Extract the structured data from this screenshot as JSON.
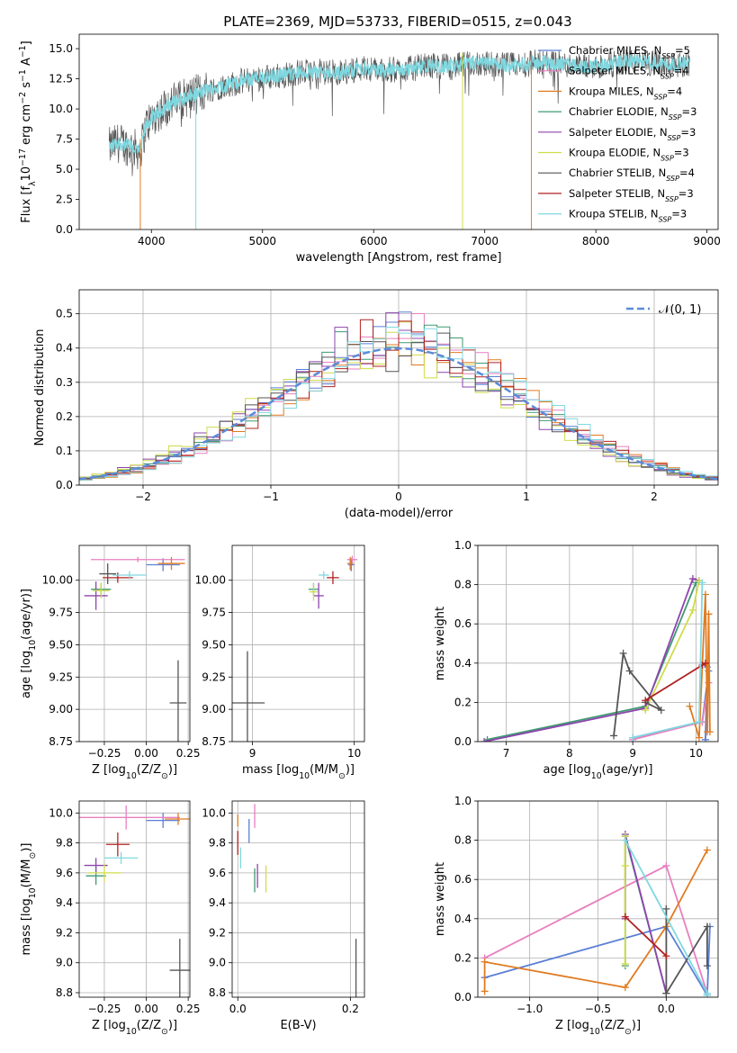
{
  "figure": {
    "title": "PLATE=2369, MJD=53733, FIBERID=0515, z=0.043"
  },
  "colors": {
    "chabrier_miles": "#5b7fd6",
    "salpeter_miles": "#e87fbf",
    "kroupa_miles": "#e07b20",
    "chabrier_elodie": "#3f9a73",
    "salpeter_elodie": "#8e44ad",
    "kroupa_elodie": "#cfdc4a",
    "chabrier_stelib": "#555555",
    "salpeter_stelib": "#b22222",
    "kroupa_stelib": "#7fd8e0",
    "grid": "#b0b0b0",
    "normal_curve": "#5b8bd8"
  },
  "chart_data": [
    {
      "id": "spectrum",
      "type": "line",
      "xlabel": "wavelength [Angstrom, rest frame]",
      "ylabel": "Flux [f$_\\lambda$10$^{-17}$ erg cm$^{-2}$ s$^{-1}$ A$^{-1}$]",
      "xlim": [
        3350,
        9100
      ],
      "ylim": [
        0,
        16.2
      ],
      "xticks": [
        4000,
        5000,
        6000,
        7000,
        8000,
        9000
      ],
      "yticks": [
        0.0,
        2.5,
        5.0,
        7.5,
        10.0,
        12.5,
        15.0
      ],
      "grid": false,
      "legend_position": "top-right",
      "legend": [
        {
          "key": "chabrier_miles",
          "label": "Chabrier MILES, N",
          "sub": "SSP",
          "suffix": "=5"
        },
        {
          "key": "salpeter_miles",
          "label": "Salpeter MILES, N",
          "sub": "SSP",
          "suffix": "=4"
        },
        {
          "key": "kroupa_miles",
          "label": "Kroupa MILES, N",
          "sub": "SSP",
          "suffix": "=4"
        },
        {
          "key": "chabrier_elodie",
          "label": "Chabrier ELODIE, N",
          "sub": "SSP",
          "suffix": "=3"
        },
        {
          "key": "salpeter_elodie",
          "label": "Salpeter ELODIE, N",
          "sub": "SSP",
          "suffix": "=3"
        },
        {
          "key": "kroupa_elodie",
          "label": "Kroupa ELODIE, N",
          "sub": "SSP",
          "suffix": "=3"
        },
        {
          "key": "chabrier_stelib",
          "label": "Chabrier STELIB, N",
          "sub": "SSP",
          "suffix": "=4"
        },
        {
          "key": "salpeter_stelib",
          "label": "Salpeter STELIB, N",
          "sub": "SSP",
          "suffix": "=3"
        },
        {
          "key": "kroupa_stelib",
          "label": "Kroupa STELIB, N",
          "sub": "SSP",
          "suffix": "=3"
        }
      ],
      "data_series": [
        {
          "key": "chabrier_stelib",
          "wavelength_range": [
            3620,
            8850
          ]
        },
        {
          "key": "kroupa_stelib",
          "wavelength_range": [
            3620,
            8850
          ]
        }
      ],
      "continuum_points": {
        "x": [
          3620,
          3700,
          3800,
          3900,
          3950,
          4000,
          4100,
          4200,
          4300,
          4400,
          4500,
          4700,
          4900,
          5100,
          5300,
          5500,
          5700,
          5900,
          6100,
          6300,
          6500,
          6700,
          6900,
          7100,
          7300,
          7500,
          7700,
          7900,
          8100,
          8300,
          8500,
          8700,
          8850
        ],
        "y": [
          6.8,
          7.2,
          6.9,
          6.5,
          8.6,
          9.2,
          10.0,
          10.6,
          10.9,
          11.2,
          11.6,
          12.0,
          12.5,
          12.7,
          13.0,
          13.1,
          13.0,
          13.4,
          13.2,
          13.3,
          13.6,
          13.5,
          13.8,
          13.7,
          13.6,
          13.9,
          13.7,
          13.5,
          13.6,
          14.0,
          13.8,
          13.7,
          13.8
        ]
      },
      "model_dropouts": [
        {
          "key": "kroupa_miles",
          "x": 3900
        },
        {
          "key": "kroupa_stelib",
          "x": 4400
        },
        {
          "key": "kroupa_elodie",
          "x": 6800
        },
        {
          "key": "kroupa_miles",
          "x": 7420
        }
      ]
    },
    {
      "id": "residual_histogram",
      "type": "bar",
      "xlabel": "(data-model)/error",
      "ylabel": "Normed distribution",
      "xlim": [
        -2.5,
        2.5
      ],
      "ylim": [
        0,
        0.57
      ],
      "xticks": [
        -2,
        -1,
        0,
        1,
        2
      ],
      "yticks": [
        0.0,
        0.1,
        0.2,
        0.3,
        0.4,
        0.5
      ],
      "grid": true,
      "legend_position": "top-right",
      "legend": [
        {
          "label": "𝒩(0, 1)"
        }
      ],
      "bin_width": 0.1,
      "normal_distribution": {
        "mean": 0,
        "sigma": 1
      }
    },
    {
      "id": "age_vs_Z",
      "type": "scatter",
      "xlabel": "Z [log$_{10}$(Z/Z$_\\odot$)]",
      "ylabel": "age  [log$_{10}$(age/yr)]",
      "xlim": [
        -0.4,
        0.26
      ],
      "ylim": [
        8.75,
        10.27
      ],
      "xticks": [
        -0.25,
        0.0,
        0.25
      ],
      "yticks": [
        8.75,
        9.0,
        9.25,
        9.5,
        9.75,
        10.0
      ],
      "grid": true,
      "points": [
        {
          "key": "chabrier_miles",
          "x": 0.1,
          "xerr": 0.1,
          "y": 10.12,
          "yerr": 0.05
        },
        {
          "key": "salpeter_miles",
          "x": -0.05,
          "xerr": 0.28,
          "y": 10.16,
          "yerr": 0.02
        },
        {
          "key": "kroupa_miles",
          "x": 0.15,
          "xerr": 0.08,
          "y": 10.13,
          "yerr": 0.05
        },
        {
          "key": "chabrier_elodie",
          "x": -0.27,
          "xerr": 0.06,
          "y": 9.93,
          "yerr": 0.05
        },
        {
          "key": "salpeter_elodie",
          "x": -0.3,
          "xerr": 0.07,
          "y": 9.88,
          "yerr": 0.11
        },
        {
          "key": "kroupa_elodie",
          "x": -0.27,
          "xerr": 0.05,
          "y": 9.92,
          "yerr": 0.06
        },
        {
          "key": "chabrier_stelib",
          "x": 0.19,
          "xerr": 0.05,
          "y": 9.05,
          "yerr": 0.33
        },
        {
          "key": "salpeter_stelib",
          "x": -0.17,
          "xerr": 0.09,
          "y": 10.02,
          "yerr": 0.04
        },
        {
          "key": "kroupa_stelib",
          "x": -0.1,
          "xerr": 0.1,
          "y": 10.04,
          "yerr": 0.03
        },
        {
          "key": "chabrier_stelib",
          "x": -0.23,
          "xerr": 0.05,
          "y": 10.05,
          "yerr": 0.08
        }
      ]
    },
    {
      "id": "age_vs_mass",
      "type": "scatter",
      "xlabel": "mass [log$_{10}$(M/M$_\\odot$)]",
      "ylabel": "",
      "xlim": [
        8.8,
        10.1
      ],
      "ylim": [
        8.75,
        10.27
      ],
      "xticks": [
        9,
        10
      ],
      "yticks": [
        8.75,
        9.0,
        9.25,
        9.5,
        9.75,
        10.0
      ],
      "grid": true,
      "points": [
        {
          "key": "chabrier_miles",
          "x": 9.97,
          "xerr": 0.03,
          "y": 10.12,
          "yerr": 0.05
        },
        {
          "key": "salpeter_miles",
          "x": 9.98,
          "xerr": 0.05,
          "y": 10.16,
          "yerr": 0.03
        },
        {
          "key": "kroupa_miles",
          "x": 9.96,
          "xerr": 0.03,
          "y": 10.13,
          "yerr": 0.05
        },
        {
          "key": "chabrier_elodie",
          "x": 9.6,
          "xerr": 0.05,
          "y": 9.93,
          "yerr": 0.05
        },
        {
          "key": "salpeter_elodie",
          "x": 9.65,
          "xerr": 0.05,
          "y": 9.88,
          "yerr": 0.1
        },
        {
          "key": "kroupa_elodie",
          "x": 9.6,
          "xerr": 0.04,
          "y": 9.91,
          "yerr": 0.07
        },
        {
          "key": "chabrier_stelib",
          "x": 8.95,
          "xerr": 0.17,
          "y": 9.05,
          "yerr": 0.4
        },
        {
          "key": "salpeter_stelib",
          "x": 9.79,
          "xerr": 0.06,
          "y": 10.02,
          "yerr": 0.05
        },
        {
          "key": "kroupa_stelib",
          "x": 9.7,
          "xerr": 0.05,
          "y": 10.04,
          "yerr": 0.03
        }
      ]
    },
    {
      "id": "massweight_vs_age",
      "type": "line",
      "xlabel": "age  [log$_{10}$(age/yr)]",
      "ylabel": "mass weight",
      "xlim": [
        6.55,
        10.35
      ],
      "ylim": [
        0,
        1.0
      ],
      "xticks": [
        7,
        8,
        9,
        10
      ],
      "yticks": [
        0.0,
        0.2,
        0.4,
        0.6,
        0.8,
        1.0
      ],
      "grid": true,
      "series": [
        {
          "key": "chabrier_miles",
          "x": [
            9.0,
            10.1,
            10.2,
            10.15,
            10.18
          ],
          "y": [
            0.02,
            0.1,
            0.36,
            0.01,
            0.38
          ]
        },
        {
          "key": "salpeter_miles",
          "x": [
            9.0,
            10.1,
            10.2
          ],
          "y": [
            0.01,
            0.1,
            0.3
          ]
        },
        {
          "key": "kroupa_miles",
          "x": [
            9.9,
            10.05,
            10.15,
            10.18,
            10.2,
            10.22
          ],
          "y": [
            0.18,
            0.02,
            0.75,
            0.05,
            0.65,
            0.05
          ]
        },
        {
          "key": "chabrier_elodie",
          "x": [
            6.7,
            9.2,
            10.0
          ],
          "y": [
            0.01,
            0.18,
            0.81
          ]
        },
        {
          "key": "salpeter_elodie",
          "x": [
            6.65,
            9.2,
            9.95,
            10.05
          ],
          "y": [
            0.0,
            0.17,
            0.83,
            0.82
          ]
        },
        {
          "key": "kroupa_elodie",
          "x": [
            9.2,
            9.95,
            10.05
          ],
          "y": [
            0.16,
            0.67,
            0.82
          ]
        },
        {
          "key": "chabrier_stelib",
          "x": [
            8.7,
            8.85,
            8.95,
            9.45,
            9.2
          ],
          "y": [
            0.03,
            0.45,
            0.36,
            0.16,
            0.2
          ]
        },
        {
          "key": "salpeter_stelib",
          "x": [
            9.2,
            10.1,
            10.15
          ],
          "y": [
            0.21,
            0.39,
            0.4
          ]
        },
        {
          "key": "kroupa_stelib",
          "x": [
            9.0,
            10.05,
            10.1
          ],
          "y": [
            0.02,
            0.1,
            0.81
          ]
        }
      ]
    },
    {
      "id": "mass_vs_Z",
      "type": "scatter",
      "xlabel": "Z [log$_{10}$(Z/Z$_\\odot$)]",
      "ylabel": "mass [log$_{10}$(M/M$_\\odot$)]",
      "xlim": [
        -0.4,
        0.26
      ],
      "ylim": [
        8.77,
        10.08
      ],
      "xticks": [
        -0.25,
        0.0,
        0.25
      ],
      "yticks": [
        8.8,
        9.0,
        9.2,
        9.4,
        9.6,
        9.8,
        10.0
      ],
      "grid": true,
      "points": [
        {
          "key": "chabrier_miles",
          "x": 0.1,
          "xerr": 0.1,
          "y": 9.95,
          "yerr": 0.05
        },
        {
          "key": "salpeter_miles",
          "x": -0.12,
          "xerr": 0.32,
          "y": 9.97,
          "yerr": 0.08
        },
        {
          "key": "kroupa_miles",
          "x": 0.19,
          "xerr": 0.08,
          "y": 9.96,
          "yerr": 0.04
        },
        {
          "key": "chabrier_elodie",
          "x": -0.3,
          "xerr": 0.06,
          "y": 9.58,
          "yerr": 0.06
        },
        {
          "key": "salpeter_elodie",
          "x": -0.3,
          "xerr": 0.07,
          "y": 9.65,
          "yerr": 0.05
        },
        {
          "key": "kroupa_elodie",
          "x": -0.25,
          "xerr": 0.1,
          "y": 9.6,
          "yerr": 0.06
        },
        {
          "key": "chabrier_stelib",
          "x": 0.2,
          "xerr": 0.06,
          "y": 8.95,
          "yerr": 0.21
        },
        {
          "key": "salpeter_stelib",
          "x": -0.17,
          "xerr": 0.07,
          "y": 9.79,
          "yerr": 0.08
        },
        {
          "key": "kroupa_stelib",
          "x": -0.15,
          "xerr": 0.1,
          "y": 9.7,
          "yerr": 0.04
        }
      ]
    },
    {
      "id": "mass_vs_ebv",
      "type": "scatter",
      "xlabel": "E(B-V)",
      "ylabel": "",
      "xlim": [
        -0.01,
        0.225
      ],
      "ylim": [
        8.77,
        10.08
      ],
      "xticks": [
        0.0,
        0.2
      ],
      "yticks": [
        8.8,
        9.0,
        9.2,
        9.4,
        9.6,
        9.8,
        10.0
      ],
      "grid": true,
      "points": [
        {
          "key": "chabrier_miles",
          "x": 0.02,
          "y": 9.88,
          "yerr": 0.08
        },
        {
          "key": "salpeter_miles",
          "x": 0.03,
          "y": 9.98,
          "yerr": 0.08
        },
        {
          "key": "kroupa_miles",
          "x": 0.0,
          "y": 9.95,
          "yerr": 0.04
        },
        {
          "key": "chabrier_elodie",
          "x": 0.03,
          "y": 9.55,
          "yerr": 0.08
        },
        {
          "key": "salpeter_elodie",
          "x": 0.035,
          "y": 9.58,
          "yerr": 0.08
        },
        {
          "key": "kroupa_elodie",
          "x": 0.05,
          "y": 9.56,
          "yerr": 0.09
        },
        {
          "key": "chabrier_stelib",
          "x": 0.21,
          "y": 8.95,
          "yerr": 0.21
        },
        {
          "key": "salpeter_stelib",
          "x": 0.0,
          "y": 9.8,
          "yerr": 0.08
        },
        {
          "key": "kroupa_stelib",
          "x": 0.005,
          "y": 9.7,
          "yerr": 0.07
        }
      ]
    },
    {
      "id": "massweight_vs_Z",
      "type": "line",
      "xlabel": "Z [log$_{10}$(Z/Z$_\\odot$)]",
      "ylabel": "mass weight",
      "xlim": [
        -1.38,
        0.38
      ],
      "ylim": [
        0,
        1.0
      ],
      "xticks": [
        -1.0,
        -0.5,
        0.0
      ],
      "yticks": [
        0.0,
        0.2,
        0.4,
        0.6,
        0.8,
        1.0
      ],
      "grid": true,
      "series": [
        {
          "key": "chabrier_miles",
          "x": [
            -1.33,
            0.0,
            0.3,
            0.32
          ],
          "y": [
            0.1,
            0.36,
            0.01,
            0.36
          ]
        },
        {
          "key": "salpeter_miles",
          "x": [
            -1.33,
            0.0,
            0.3
          ],
          "y": [
            0.2,
            0.67,
            0.02
          ]
        },
        {
          "key": "kroupa_miles",
          "x": [
            -1.33,
            -1.33,
            -0.3,
            0.0,
            0.3
          ],
          "y": [
            0.03,
            0.18,
            0.05,
            0.36,
            0.75
          ]
        },
        {
          "key": "chabrier_elodie",
          "x": [
            -0.3,
            -0.3,
            0.0
          ],
          "y": [
            0.16,
            0.82,
            0.02
          ]
        },
        {
          "key": "salpeter_elodie",
          "x": [
            -0.3,
            -0.3,
            0.0
          ],
          "y": [
            0.4,
            0.83,
            0.02
          ]
        },
        {
          "key": "kroupa_elodie",
          "x": [
            -0.3,
            -0.3,
            -0.3
          ],
          "y": [
            0.17,
            0.67,
            0.82
          ]
        },
        {
          "key": "chabrier_stelib",
          "x": [
            0.0,
            0.0,
            0.3,
            0.3
          ],
          "y": [
            0.45,
            0.02,
            0.36,
            0.16
          ]
        },
        {
          "key": "salpeter_stelib",
          "x": [
            -0.3,
            0.0
          ],
          "y": [
            0.41,
            0.21
          ]
        },
        {
          "key": "kroupa_stelib",
          "x": [
            -0.3,
            0.3,
            0.3
          ],
          "y": [
            0.8,
            0.02,
            0.01
          ]
        }
      ]
    }
  ]
}
